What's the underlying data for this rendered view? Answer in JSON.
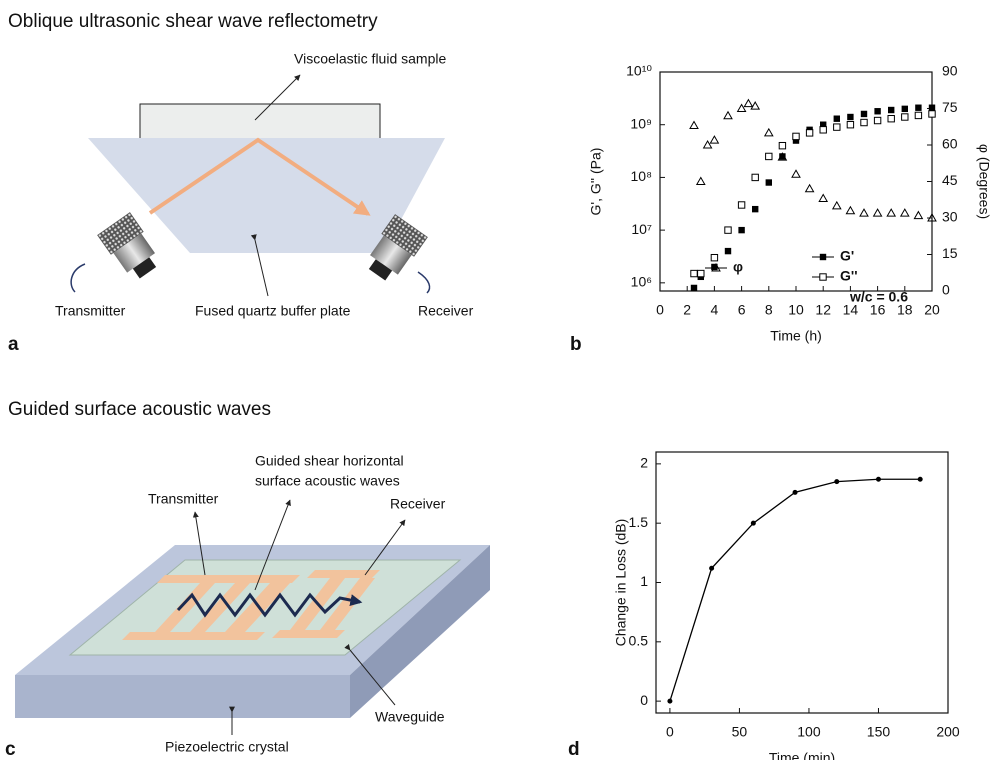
{
  "panel_a": {
    "title": "Oblique ultrasonic shear wave reflectometry",
    "letter": "a",
    "labels": {
      "sample": "Viscoelastic fluid sample",
      "transmitter": "Transmitter",
      "plate": "Fused quartz buffer plate",
      "receiver": "Receiver"
    }
  },
  "panel_b": {
    "letter": "b"
  },
  "panel_c": {
    "title": "Guided surface acoustic waves",
    "letter": "c",
    "labels": {
      "waves": [
        "Guided shear horizontal",
        "surface acoustic waves"
      ],
      "transmitter": "Transmitter",
      "receiver": "Receiver",
      "waveguide": "Waveguide",
      "crystal": "Piezoelectric crystal"
    }
  },
  "panel_d": {
    "letter": "d"
  },
  "chart_data": [
    {
      "type": "scatter",
      "xlabel": "Time (h)",
      "ylabel": "G', G'' (Pa)",
      "y2label": "φ (Degrees)",
      "annotation": "w/c = 0.6",
      "log_y": true,
      "xlim": [
        0,
        20
      ],
      "xticks": [
        0,
        2,
        4,
        6,
        8,
        10,
        12,
        14,
        16,
        18,
        20
      ],
      "ylim": [
        700000,
        10000000000
      ],
      "yticks": [
        {
          "value": 1000000,
          "label": "10⁶"
        },
        {
          "value": 10000000,
          "label": "10⁷"
        },
        {
          "value": 100000000,
          "label": "10⁸"
        },
        {
          "value": 1000000000,
          "label": "10⁹"
        },
        {
          "value": 10000000000,
          "label": "10¹⁰"
        }
      ],
      "y2lim": [
        0,
        90
      ],
      "y2ticks": [
        0,
        15,
        30,
        45,
        60,
        75,
        90
      ],
      "series": [
        {
          "name": "G'",
          "color": "#000000",
          "marker": "filled-square",
          "x": [
            2.5,
            3,
            4,
            5,
            6,
            7,
            8,
            9,
            10,
            11,
            12,
            13,
            14,
            15,
            16,
            17,
            18,
            19,
            20
          ],
          "values": [
            800000,
            1300000,
            2000000,
            4000000,
            10000000,
            25000000,
            80000000,
            250000000,
            500000000,
            800000000,
            1000000000,
            1300000000,
            1400000000,
            1600000000,
            1800000000,
            1900000000,
            2000000000,
            2100000000,
            2100000000
          ]
        },
        {
          "name": "G''",
          "color": "#000000",
          "marker": "open-square",
          "x": [
            2.5,
            3,
            4,
            5,
            6,
            7,
            8,
            9,
            10,
            11,
            12,
            13,
            14,
            15,
            16,
            17,
            18,
            19,
            20
          ],
          "values": [
            1500000,
            1500000,
            3000000,
            10000000,
            30000000,
            100000000,
            250000000,
            400000000,
            600000000,
            700000000,
            800000000,
            900000000,
            1000000000,
            1100000000,
            1200000000,
            1300000000,
            1400000000,
            1500000000,
            1600000000
          ]
        },
        {
          "name": "φ",
          "color": "#000000",
          "marker": "open-triangle",
          "axis": "y2",
          "x": [
            2.5,
            3,
            3.5,
            4,
            5,
            6,
            6.5,
            7,
            8,
            9,
            10,
            11,
            12,
            13,
            14,
            15,
            16,
            17,
            18,
            19,
            20
          ],
          "values": [
            68,
            45,
            60,
            62,
            72,
            75,
            77,
            76,
            65,
            55,
            48,
            42,
            38,
            35,
            33,
            32,
            32,
            32,
            32,
            31,
            30
          ]
        }
      ]
    },
    {
      "type": "line",
      "xlabel": "Time (min)",
      "ylabel": "Change in Loss (dB)",
      "color": "#000000",
      "xlim": [
        -10,
        200
      ],
      "xticks": [
        0,
        50,
        100,
        150,
        200
      ],
      "ylim": [
        -0.1,
        2.1
      ],
      "yticks": [
        0,
        0.5,
        1,
        1.5,
        2
      ],
      "x": [
        0,
        30,
        60,
        90,
        120,
        150,
        180
      ],
      "values": [
        0,
        1.12,
        1.5,
        1.76,
        1.85,
        1.87,
        1.87
      ]
    }
  ]
}
